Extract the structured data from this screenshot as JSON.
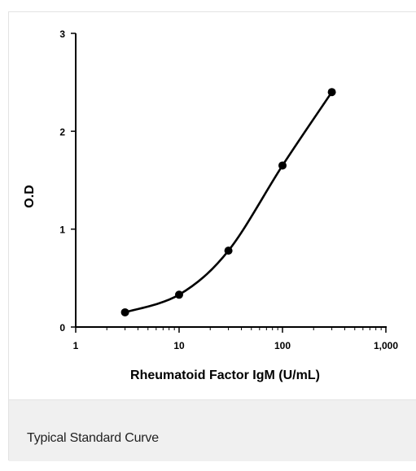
{
  "chart_data": {
    "type": "line",
    "x_scale": "log",
    "xlabel": "Rheumatoid Factor IgM (U/mL)",
    "ylabel": "O.D",
    "xlim": [
      1,
      1000
    ],
    "ylim": [
      0,
      3
    ],
    "x_ticks": [
      1,
      10,
      100,
      1000
    ],
    "x_tick_labels": [
      "1",
      "10",
      "100",
      "1,000"
    ],
    "y_ticks": [
      0,
      1,
      2,
      3
    ],
    "y_tick_labels": [
      "0",
      "1",
      "2",
      "3"
    ],
    "grid": false,
    "legend": "none",
    "series": [
      {
        "x": [
          3,
          10,
          30,
          100,
          300
        ],
        "y": [
          0.15,
          0.33,
          0.78,
          1.65,
          2.4
        ],
        "style": "smooth line with circular markers",
        "color": "#000000"
      }
    ]
  },
  "caption": "Typical Standard Curve"
}
